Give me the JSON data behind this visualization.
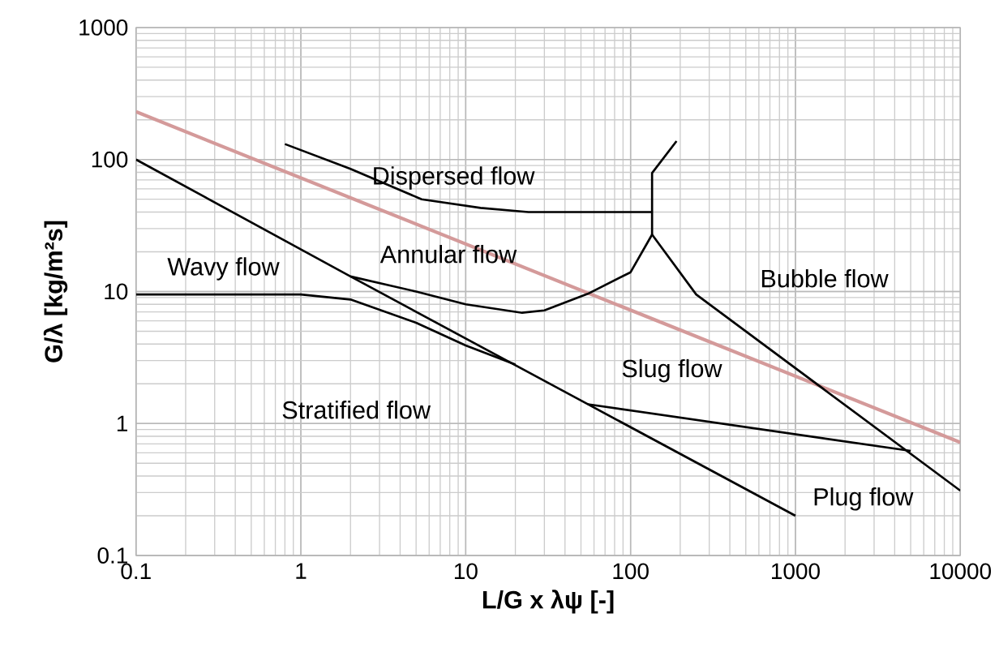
{
  "chart_data": {
    "type": "line",
    "xlabel": "L/G x λψ [-]",
    "ylabel": "G/λ  [kg/m²s]",
    "log": "xy",
    "grid": true,
    "marker": "none",
    "line_style": "solid",
    "xlim": [
      0.1,
      10000
    ],
    "ylim": [
      0.1,
      1000
    ],
    "xticks": [
      0.1,
      1,
      10,
      100,
      1000,
      10000
    ],
    "yticks": [
      0.1,
      1,
      10,
      100,
      1000
    ],
    "series": [
      {
        "color": "#d49a9a",
        "x": [
          0.1,
          10000
        ],
        "values": [
          230,
          0.72
        ]
      },
      {
        "color": "#000000",
        "x": [
          0.1,
          2,
          55,
          1000
        ],
        "values": [
          100,
          13,
          1.4,
          0.2
        ]
      },
      {
        "color": "#000000",
        "x": [
          0.1,
          1,
          2,
          5,
          10,
          20
        ],
        "values": [
          9.5,
          9.5,
          8.7,
          5.8,
          3.9,
          2.8
        ]
      },
      {
        "color": "#000000",
        "x": [
          2,
          5,
          10,
          22,
          30,
          55,
          100,
          135
        ],
        "values": [
          13,
          10,
          8,
          6.9,
          7.2,
          9.6,
          14,
          27
        ]
      },
      {
        "color": "#000000",
        "x": [
          135,
          135,
          190
        ],
        "values": [
          27,
          79,
          138
        ]
      },
      {
        "color": "#000000",
        "x": [
          0.8,
          2,
          5.4,
          12.3,
          24,
          135
        ],
        "values": [
          131,
          85,
          50,
          43,
          40,
          40
        ]
      },
      {
        "color": "#000000",
        "x": [
          135,
          250,
          10000
        ],
        "values": [
          27,
          9.5,
          0.31
        ]
      },
      {
        "color": "#000000",
        "x": [
          55,
          5000
        ],
        "values": [
          1.4,
          0.62
        ]
      }
    ],
    "annotations": [
      "Dispersed flow",
      "Annular flow",
      "Wavy flow",
      "Bubble flow",
      "Slug flow",
      "Stratified flow",
      "Plug flow"
    ]
  }
}
